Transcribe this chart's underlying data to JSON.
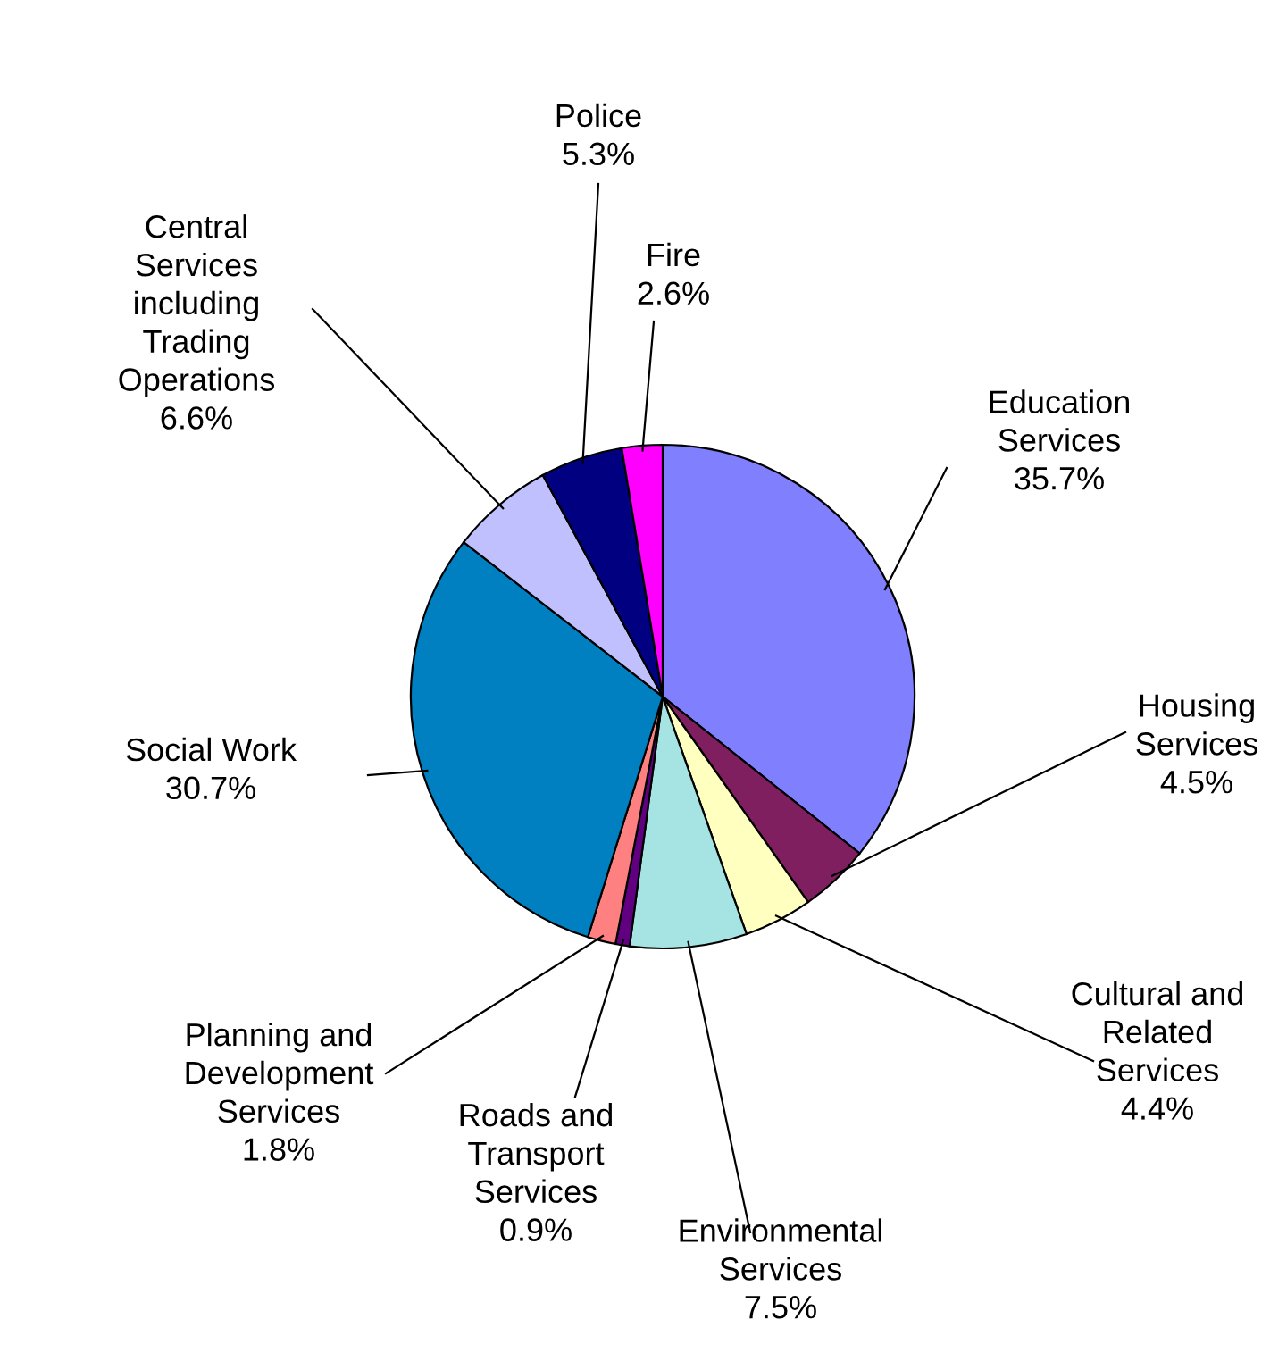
{
  "chart_data": {
    "type": "pie",
    "categories": [
      "Education\nServices",
      "Housing\nServices",
      "Cultural and\nRelated\nServices",
      "Environmental\nServices",
      "Roads and\nTransport\nServices",
      "Planning and\nDevelopment\nServices",
      "Social Work",
      "Central\nServices\nincluding\nTrading\nOperations",
      "Police",
      "Fire"
    ],
    "values": [
      35.7,
      4.5,
      4.4,
      7.5,
      0.9,
      1.8,
      30.7,
      6.6,
      5.3,
      2.6
    ],
    "colors": [
      "#8080ff",
      "#7f1f5f",
      "#ffffc0",
      "#a6e3e3",
      "#600080",
      "#ff8080",
      "#0080c0",
      "#c0c0ff",
      "#000080",
      "#ff00ff"
    ],
    "value_labels": [
      "35.7%",
      "4.5%",
      "4.4%",
      "7.5%",
      "0.9%",
      "1.8%",
      "30.7%",
      "6.6%",
      "5.3%",
      "2.6%"
    ],
    "legend": false
  }
}
